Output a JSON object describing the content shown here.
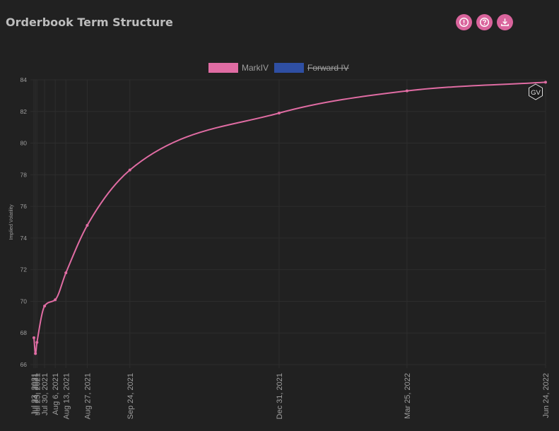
{
  "header": {
    "title": "Orderbook Term Structure"
  },
  "toolbar": {
    "buttons": [
      {
        "name": "info-button",
        "icon": "info-icon"
      },
      {
        "name": "help-button",
        "icon": "question-icon"
      },
      {
        "name": "download-button",
        "icon": "download-icon"
      }
    ]
  },
  "badge": {
    "label": "GV"
  },
  "colors": {
    "accent": "#d9649c",
    "markiv": "#e06ca3",
    "forward": "#2f4fa3"
  },
  "chart_data": {
    "type": "line",
    "xlabel": "",
    "ylabel": "Implied Volatility",
    "ylim": [
      66,
      84
    ],
    "yticks": [
      66,
      68,
      70,
      72,
      74,
      76,
      78,
      80,
      82,
      84
    ],
    "x_axis": "time",
    "xlim": [
      "2021-07-23",
      "2022-06-24"
    ],
    "grid": true,
    "legend_position": "top",
    "series": [
      {
        "name": "MarkIV",
        "visible": true,
        "points": [
          {
            "x": "2021-07-23",
            "label": "Jul 23, 2021",
            "y": 67.7
          },
          {
            "x": "2021-07-24",
            "label": "Jul 24, 2021",
            "y": 66.7
          },
          {
            "x": "2021-07-25",
            "label": "Jul 25, 2021",
            "y": 67.4
          },
          {
            "x": "2021-07-30",
            "label": "Jul 30, 2021",
            "y": 69.7
          },
          {
            "x": "2021-08-06",
            "label": "Aug 6, 2021",
            "y": 70.1
          },
          {
            "x": "2021-08-13",
            "label": "Aug 13, 2021",
            "y": 71.8
          },
          {
            "x": "2021-08-27",
            "label": "Aug 27, 2021",
            "y": 74.8
          },
          {
            "x": "2021-09-24",
            "label": "Sep 24, 2021",
            "y": 78.3
          },
          {
            "x": "2021-12-31",
            "label": "Dec 31, 2021",
            "y": 81.9
          },
          {
            "x": "2022-03-25",
            "label": "Mar 25, 2022",
            "y": 83.3
          },
          {
            "x": "2022-06-24",
            "label": "Jun 24, 2022",
            "y": 83.85
          }
        ]
      },
      {
        "name": "Forward IV",
        "visible": false,
        "points": []
      }
    ]
  }
}
